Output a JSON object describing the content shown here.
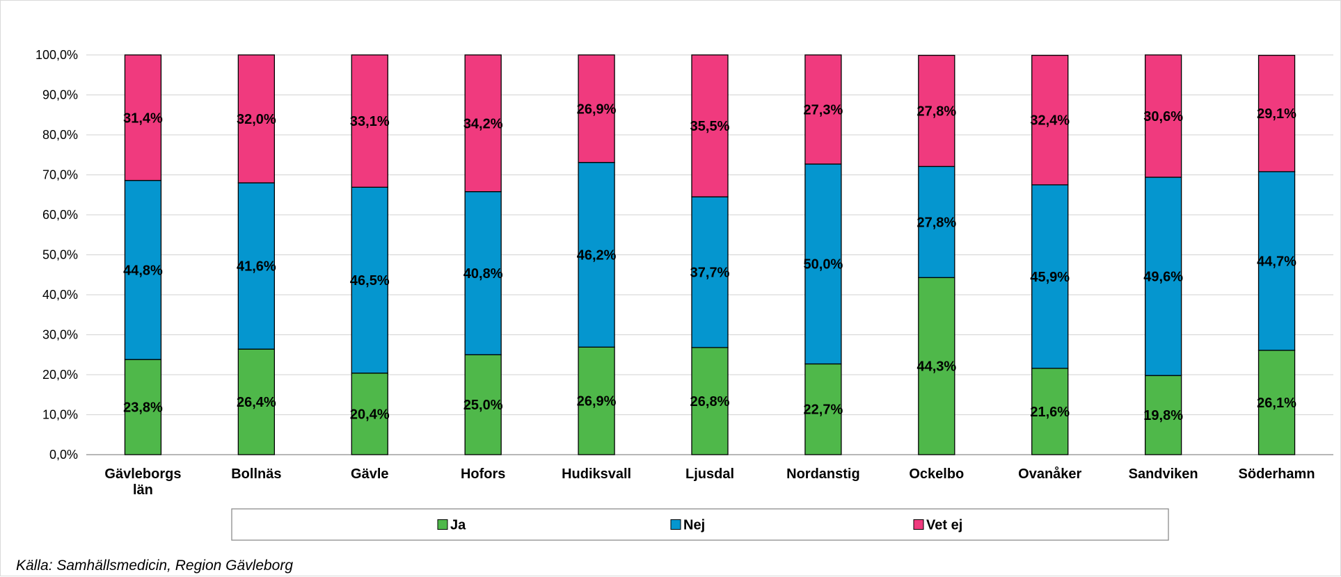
{
  "chart_data": {
    "type": "bar",
    "stacked": true,
    "categories": [
      [
        "Gävleborgs",
        "län"
      ],
      [
        "Bollnäs"
      ],
      [
        "Gävle"
      ],
      [
        "Hofors"
      ],
      [
        "Hudiksvall"
      ],
      [
        "Ljusdal"
      ],
      [
        "Nordanstig"
      ],
      [
        "Ockelbo"
      ],
      [
        "Ovanåker"
      ],
      [
        "Sandviken"
      ],
      [
        "Söderhamn"
      ]
    ],
    "series": [
      {
        "name": "Ja",
        "color": "#4fb84a",
        "values": [
          23.8,
          26.4,
          20.4,
          25.0,
          26.9,
          26.8,
          22.7,
          44.3,
          21.6,
          19.8,
          26.1
        ],
        "labels": [
          "23,8%",
          "26,4%",
          "20,4%",
          "25,0%",
          "26,9%",
          "26,8%",
          "22,7%",
          "44,3%",
          "21,6%",
          "19,8%",
          "26,1%"
        ]
      },
      {
        "name": "Nej",
        "color": "#0596cf",
        "values": [
          44.8,
          41.6,
          46.5,
          40.8,
          46.2,
          37.7,
          50.0,
          27.8,
          45.9,
          49.6,
          44.7
        ],
        "labels": [
          "44,8%",
          "41,6%",
          "46,5%",
          "40,8%",
          "46,2%",
          "37,7%",
          "50,0%",
          "27,8%",
          "45,9%",
          "49,6%",
          "44,7%"
        ]
      },
      {
        "name": "Vet ej",
        "color": "#f03a7e",
        "values": [
          31.4,
          32.0,
          33.1,
          34.2,
          26.9,
          35.5,
          27.3,
          27.8,
          32.4,
          30.6,
          29.1
        ],
        "labels": [
          "31,4%",
          "32,0%",
          "33,1%",
          "34,2%",
          "26,9%",
          "35,5%",
          "27,3%",
          "27,8%",
          "32,4%",
          "30,6%",
          "29,1%"
        ]
      }
    ],
    "y_ticks": [
      "0,0%",
      "10,0%",
      "20,0%",
      "30,0%",
      "40,0%",
      "50,0%",
      "60,0%",
      "70,0%",
      "80,0%",
      "90,0%",
      "100,0%"
    ],
    "ylim": [
      0,
      100
    ],
    "grid": true,
    "legend_position": "bottom",
    "title": "",
    "xlabel": "",
    "ylabel": ""
  },
  "source": "Källa: Samhällsmedicin, Region Gävleborg"
}
